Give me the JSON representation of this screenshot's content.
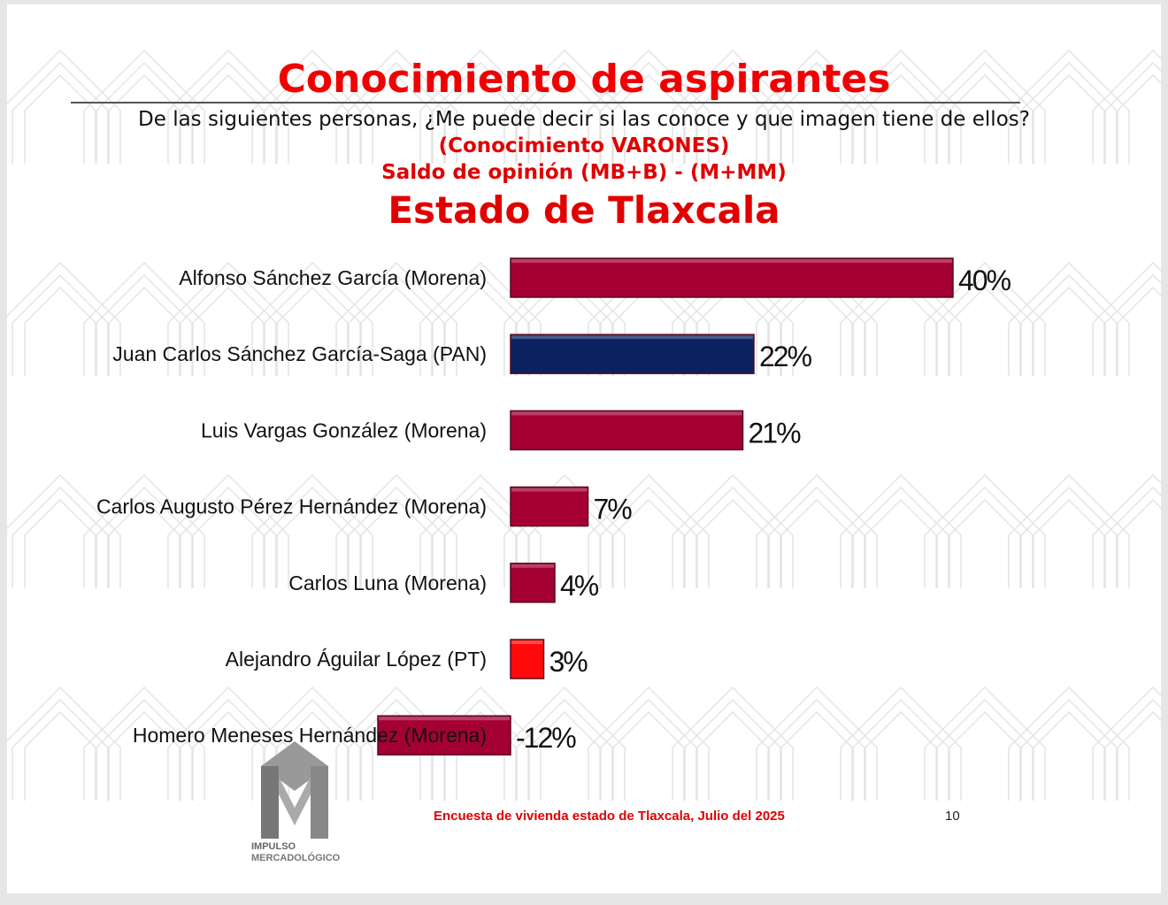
{
  "header": {
    "title": "Conocimiento de aspirantes",
    "question": "De las siguientes personas, ¿Me puede decir si las conoce y que imagen tiene de ellos?",
    "subtitle1": "(Conocimiento VARONES)",
    "subtitle2": "Saldo de opinión (MB+B) - (M+MM)",
    "subtitle3": "Estado de  Tlaxcala"
  },
  "chart_data": {
    "type": "bar",
    "orientation": "horizontal",
    "title": "Conocimiento de aspirantes",
    "categories": [
      "Alfonso Sánchez García (Morena)",
      "Juan Carlos Sánchez García-Saga (PAN)",
      "Luis Vargas González (Morena)",
      "Carlos Augusto Pérez Hernández (Morena)",
      "Carlos Luna (Morena)",
      "Alejandro Águilar López (PT)",
      "Homero Meneses Hernández (Morena)"
    ],
    "values": [
      40,
      22,
      21,
      7,
      4,
      3,
      -12
    ],
    "value_labels": [
      "40%",
      "22%",
      "21%",
      "7%",
      "4%",
      "3%",
      "-12%"
    ],
    "colors": [
      "#a50034",
      "#0b2160",
      "#a50034",
      "#a50034",
      "#a50034",
      "#ff0a0a",
      "#a50034"
    ],
    "xlim": [
      -12,
      40
    ],
    "grid": false
  },
  "footer": {
    "source": "Encuesta de vivienda estado de Tlaxcala, Julio   del 2025",
    "page": "10"
  },
  "logo": {
    "line1": "IMPULSO",
    "line2": "MERCADOLÓGICO"
  }
}
